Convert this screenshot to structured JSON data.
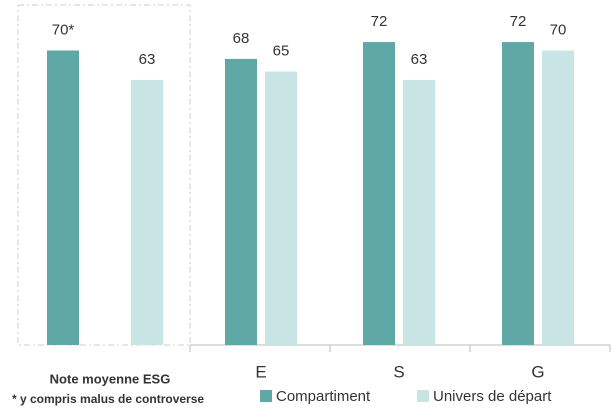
{
  "chart_data": {
    "type": "bar",
    "categories": [
      "Note moyenne ESG",
      "E",
      "S",
      "G"
    ],
    "series": [
      {
        "name": "Compartiment",
        "color": "#5fa8a5",
        "values": [
          70,
          68,
          72,
          72
        ],
        "value_labels": [
          "70*",
          "68",
          "72",
          "72"
        ]
      },
      {
        "name": "Univers de départ",
        "color": "#c9e4e5",
        "values": [
          63,
          65,
          63,
          70
        ]
      }
    ],
    "ylim": [
      0,
      82
    ],
    "footnote": "* y compris malus de controverse"
  }
}
